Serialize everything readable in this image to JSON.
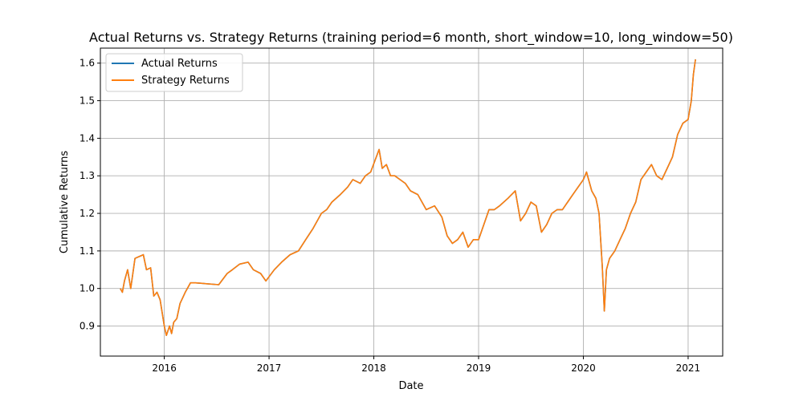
{
  "chart_data": {
    "type": "line",
    "title": "Actual Returns vs. Strategy Returns (training period=6 month, short_window=10, long_window=50)",
    "xlabel": "Date",
    "ylabel": "Cumulative Returns",
    "xlim": [
      2015.39,
      2021.33
    ],
    "ylim": [
      0.82,
      1.64
    ],
    "x_ticks": [
      {
        "value": 2016,
        "label": "2016"
      },
      {
        "value": 2017,
        "label": "2017"
      },
      {
        "value": 2018,
        "label": "2018"
      },
      {
        "value": 2019,
        "label": "2019"
      },
      {
        "value": 2020,
        "label": "2020"
      },
      {
        "value": 2021,
        "label": "2021"
      }
    ],
    "y_ticks": [
      {
        "value": 0.9,
        "label": "0.9"
      },
      {
        "value": 1.0,
        "label": "1.0"
      },
      {
        "value": 1.1,
        "label": "1.1"
      },
      {
        "value": 1.2,
        "label": "1.2"
      },
      {
        "value": 1.3,
        "label": "1.3"
      },
      {
        "value": 1.4,
        "label": "1.4"
      },
      {
        "value": 1.5,
        "label": "1.5"
      },
      {
        "value": 1.6,
        "label": "1.6"
      }
    ],
    "grid": true,
    "legend_position": "top-left",
    "series": [
      {
        "name": "Actual Returns",
        "color": "#1f77b4",
        "x": [
          2015.58,
          2015.6,
          2015.62,
          2015.65,
          2015.68,
          2015.72,
          2015.76,
          2015.8,
          2015.83,
          2015.87,
          2015.9,
          2015.93,
          2015.96,
          2016.0,
          2016.02,
          2016.05,
          2016.07,
          2016.09,
          2016.12,
          2016.15,
          2016.2,
          2016.25,
          2016.3,
          2016.52,
          2016.6,
          2016.65,
          2016.72,
          2016.8,
          2016.85,
          2016.92,
          2016.97,
          2017.05,
          2017.12,
          2017.2,
          2017.28,
          2017.35,
          2017.42,
          2017.5,
          2017.55,
          2017.6,
          2017.68,
          2017.75,
          2017.8,
          2017.87,
          2017.92,
          2017.97,
          2018.05,
          2018.08,
          2018.12,
          2018.16,
          2018.2,
          2018.25,
          2018.3,
          2018.35,
          2018.42,
          2018.5,
          2018.58,
          2018.65,
          2018.7,
          2018.75,
          2018.8,
          2018.85,
          2018.9,
          2018.95,
          2019.0,
          2019.05,
          2019.1,
          2019.15,
          2019.2,
          2019.28,
          2019.35,
          2019.4,
          2019.45,
          2019.5,
          2019.55,
          2019.6,
          2019.65,
          2019.7,
          2019.75,
          2019.8,
          2019.85,
          2019.9,
          2019.95,
          2020.0,
          2020.03,
          2020.08,
          2020.12,
          2020.15,
          2020.18,
          2020.2,
          2020.22,
          2020.25,
          2020.3,
          2020.35,
          2020.4,
          2020.45,
          2020.5,
          2020.55,
          2020.6,
          2020.65,
          2020.7,
          2020.75,
          2020.8,
          2020.85,
          2020.9,
          2020.95,
          2021.0,
          2021.03,
          2021.05,
          2021.07
        ],
        "y": [
          1.0,
          0.99,
          1.02,
          1.05,
          1.0,
          1.08,
          1.085,
          1.09,
          1.05,
          1.055,
          0.98,
          0.99,
          0.97,
          0.9,
          0.875,
          0.9,
          0.88,
          0.91,
          0.92,
          0.96,
          0.99,
          1.015,
          1.015,
          1.01,
          1.04,
          1.05,
          1.065,
          1.07,
          1.05,
          1.04,
          1.02,
          1.05,
          1.07,
          1.09,
          1.1,
          1.13,
          1.16,
          1.2,
          1.21,
          1.23,
          1.25,
          1.27,
          1.29,
          1.28,
          1.3,
          1.31,
          1.37,
          1.32,
          1.33,
          1.3,
          1.3,
          1.29,
          1.28,
          1.26,
          1.25,
          1.21,
          1.22,
          1.19,
          1.14,
          1.12,
          1.13,
          1.15,
          1.11,
          1.13,
          1.13,
          1.17,
          1.21,
          1.21,
          1.22,
          1.24,
          1.26,
          1.18,
          1.2,
          1.23,
          1.22,
          1.15,
          1.17,
          1.2,
          1.21,
          1.21,
          1.23,
          1.25,
          1.27,
          1.29,
          1.31,
          1.26,
          1.24,
          1.2,
          1.06,
          0.94,
          1.05,
          1.08,
          1.1,
          1.13,
          1.16,
          1.2,
          1.23,
          1.29,
          1.31,
          1.33,
          1.3,
          1.29,
          1.32,
          1.35,
          1.41,
          1.44,
          1.45,
          1.5,
          1.57,
          1.61
        ]
      },
      {
        "name": "Strategy Returns",
        "color": "#ff7f0e",
        "x": [
          2015.58,
          2015.6,
          2015.62,
          2015.65,
          2015.68,
          2015.72,
          2015.76,
          2015.8,
          2015.83,
          2015.87,
          2015.9,
          2015.93,
          2015.96,
          2016.0,
          2016.02,
          2016.05,
          2016.07,
          2016.09,
          2016.12,
          2016.15,
          2016.2,
          2016.25,
          2016.3,
          2016.52,
          2016.6,
          2016.65,
          2016.72,
          2016.8,
          2016.85,
          2016.92,
          2016.97,
          2017.05,
          2017.12,
          2017.2,
          2017.28,
          2017.35,
          2017.42,
          2017.5,
          2017.55,
          2017.6,
          2017.68,
          2017.75,
          2017.8,
          2017.87,
          2017.92,
          2017.97,
          2018.05,
          2018.08,
          2018.12,
          2018.16,
          2018.2,
          2018.25,
          2018.3,
          2018.35,
          2018.42,
          2018.5,
          2018.58,
          2018.65,
          2018.7,
          2018.75,
          2018.8,
          2018.85,
          2018.9,
          2018.95,
          2019.0,
          2019.05,
          2019.1,
          2019.15,
          2019.2,
          2019.28,
          2019.35,
          2019.4,
          2019.45,
          2019.5,
          2019.55,
          2019.6,
          2019.65,
          2019.7,
          2019.75,
          2019.8,
          2019.85,
          2019.9,
          2019.95,
          2020.0,
          2020.03,
          2020.08,
          2020.12,
          2020.15,
          2020.18,
          2020.2,
          2020.22,
          2020.25,
          2020.3,
          2020.35,
          2020.4,
          2020.45,
          2020.5,
          2020.55,
          2020.6,
          2020.65,
          2020.7,
          2020.75,
          2020.8,
          2020.85,
          2020.9,
          2020.95,
          2021.0,
          2021.03,
          2021.05,
          2021.07
        ],
        "y": [
          1.0,
          0.99,
          1.02,
          1.05,
          1.0,
          1.08,
          1.085,
          1.09,
          1.05,
          1.055,
          0.98,
          0.99,
          0.97,
          0.9,
          0.875,
          0.9,
          0.88,
          0.91,
          0.92,
          0.96,
          0.99,
          1.015,
          1.015,
          1.01,
          1.04,
          1.05,
          1.065,
          1.07,
          1.05,
          1.04,
          1.02,
          1.05,
          1.07,
          1.09,
          1.1,
          1.13,
          1.16,
          1.2,
          1.21,
          1.23,
          1.25,
          1.27,
          1.29,
          1.28,
          1.3,
          1.31,
          1.37,
          1.32,
          1.33,
          1.3,
          1.3,
          1.29,
          1.28,
          1.26,
          1.25,
          1.21,
          1.22,
          1.19,
          1.14,
          1.12,
          1.13,
          1.15,
          1.11,
          1.13,
          1.13,
          1.17,
          1.21,
          1.21,
          1.22,
          1.24,
          1.26,
          1.18,
          1.2,
          1.23,
          1.22,
          1.15,
          1.17,
          1.2,
          1.21,
          1.21,
          1.23,
          1.25,
          1.27,
          1.29,
          1.31,
          1.26,
          1.24,
          1.2,
          1.06,
          0.94,
          1.05,
          1.08,
          1.1,
          1.13,
          1.16,
          1.2,
          1.23,
          1.29,
          1.31,
          1.33,
          1.3,
          1.29,
          1.32,
          1.35,
          1.41,
          1.44,
          1.45,
          1.5,
          1.57,
          1.61
        ]
      }
    ]
  }
}
